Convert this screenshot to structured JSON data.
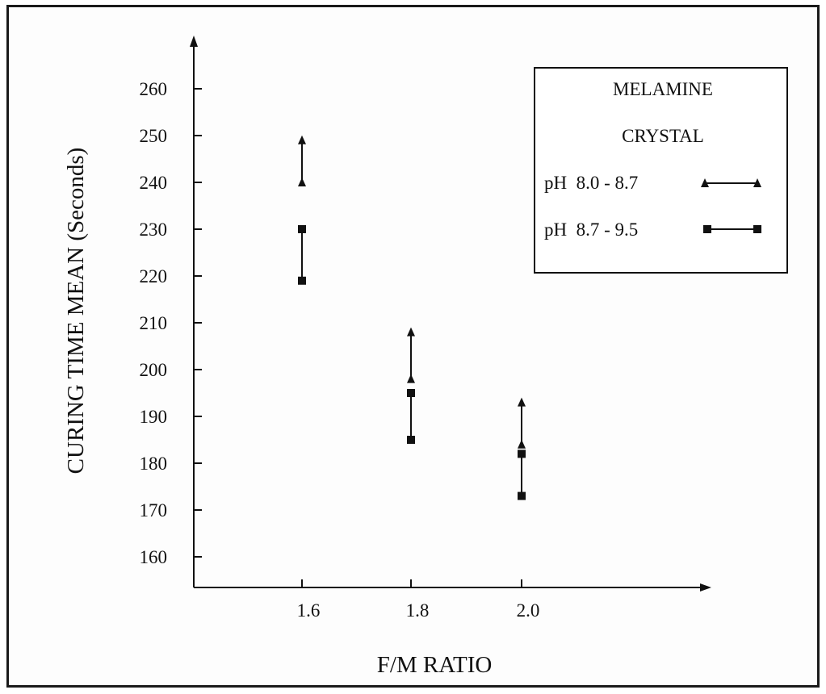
{
  "chart_data": {
    "type": "scatter",
    "xlabel": "F/M RATIO",
    "ylabel": "CURING TIME MEAN (Seconds)",
    "x_ticks": [
      "1.6",
      "1.8",
      "2.0"
    ],
    "y_ticks": [
      "160",
      "170",
      "180",
      "190",
      "200",
      "210",
      "220",
      "230",
      "240",
      "250",
      "260"
    ],
    "ylim": [
      155,
      270
    ],
    "grid": false,
    "legend": {
      "title_lines": [
        "MELAMINE",
        "CRYSTAL"
      ],
      "placement": "top-right"
    },
    "series": [
      {
        "name": "pH  8.0 - 8.7",
        "marker": "triangle",
        "color": "#111111",
        "ranges": [
          {
            "x": 1.6,
            "low": 240,
            "high": 249
          },
          {
            "x": 1.8,
            "low": 198,
            "high": 208
          },
          {
            "x": 2.0,
            "low": 184,
            "high": 193
          }
        ]
      },
      {
        "name": "pH  8.7 - 9.5",
        "marker": "square",
        "color": "#111111",
        "ranges": [
          {
            "x": 1.6,
            "low": 219,
            "high": 230
          },
          {
            "x": 1.8,
            "low": 185,
            "high": 195
          },
          {
            "x": 2.0,
            "low": 173,
            "high": 182
          }
        ]
      }
    ]
  }
}
